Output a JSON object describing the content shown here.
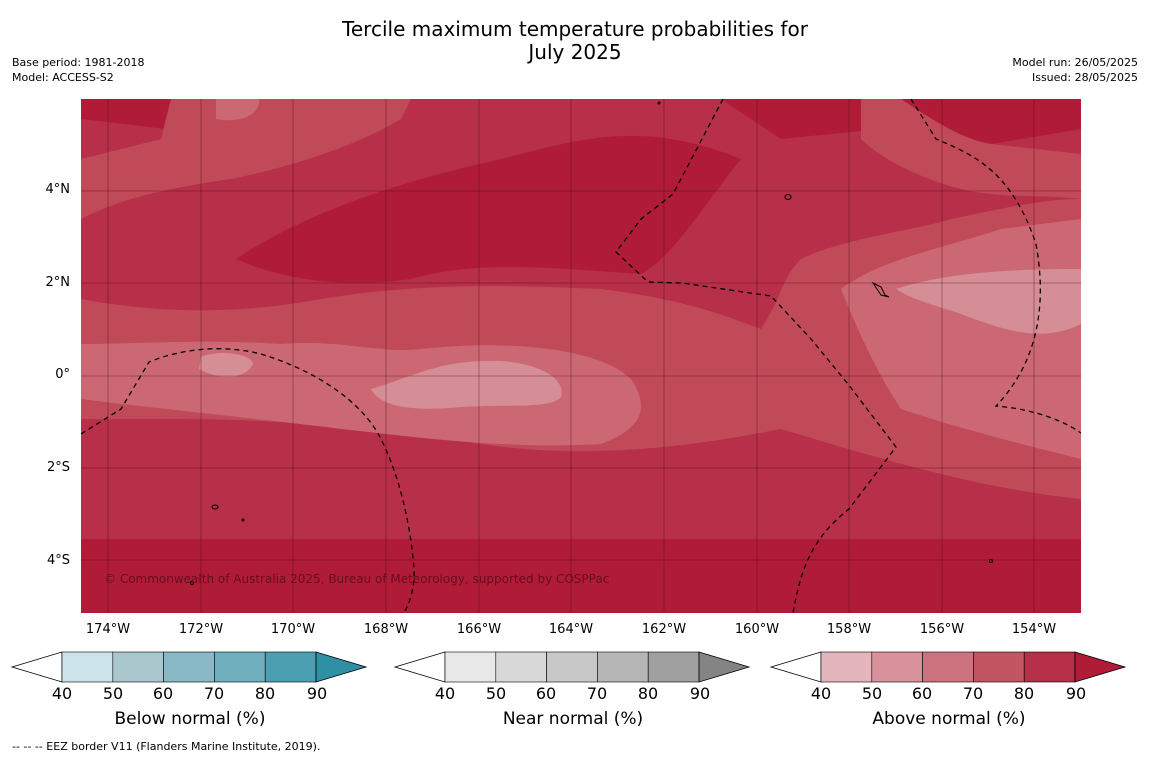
{
  "title_line1": "Tercile maximum temperature probabilities for",
  "title_line2": "July 2025",
  "meta_left": [
    "Base period: 1981-2018",
    "Model: ACCESS-S2"
  ],
  "meta_right": [
    "Model run: 26/05/2025",
    "Issued: 28/05/2025"
  ],
  "lat_labels": [
    "4°N",
    "2°N",
    "0°",
    "2°S",
    "4°S"
  ],
  "lon_labels": [
    "174°W",
    "172°W",
    "170°W",
    "168°W",
    "166°W",
    "164°W",
    "162°W",
    "160°W",
    "158°W",
    "156°W",
    "154°W"
  ],
  "copyright": "© Commonwealth of Australia 2025, Bureau of Meteorology, supported by COSPPac",
  "footnote": "--  --  -- EEZ border V11 (Flanders Marine Institute, 2019).",
  "colorbars": [
    {
      "label": "Below normal (%)",
      "ticks": [
        "40",
        "50",
        "60",
        "70",
        "80",
        "90"
      ],
      "colors": [
        "#cde3ea",
        "#a9c7cd",
        "#89b8c6",
        "#6fafbe",
        "#4aa0b0",
        "#2f8fa3"
      ]
    },
    {
      "label": "Near normal (%)",
      "ticks": [
        "40",
        "50",
        "60",
        "70",
        "80",
        "90"
      ],
      "colors": [
        "#e8e8e8",
        "#d8d8d8",
        "#c8c8c8",
        "#b6b6b6",
        "#a0a0a0",
        "#848484"
      ]
    },
    {
      "label": "Above normal (%)",
      "ticks": [
        "40",
        "50",
        "60",
        "70",
        "80",
        "90"
      ],
      "colors": [
        "#e3b6bd",
        "#d8929c",
        "#cd727f",
        "#c35462",
        "#b72f48",
        "#b01c38"
      ]
    }
  ]
}
